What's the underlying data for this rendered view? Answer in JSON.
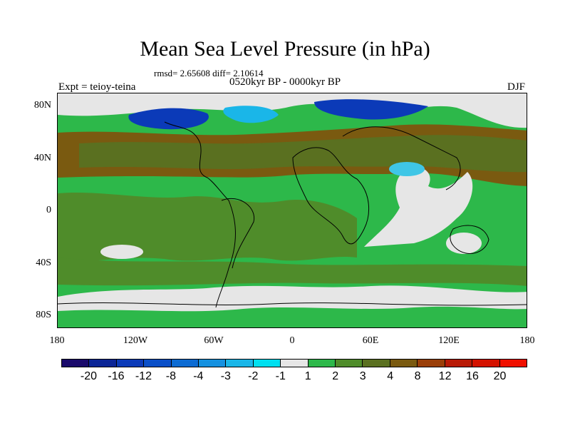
{
  "title": "Mean Sea Level Pressure (in hPa)",
  "stats": "rmsd= 2.65608 diff= 2.10614",
  "period": "0520kyr BP - 0000kyr BP",
  "experiment": "Expt = teioy-teina",
  "season": "DJF",
  "map": {
    "lat_labels": [
      "80N",
      "40N",
      "0",
      "40S",
      "80S"
    ],
    "lon_labels": [
      "180",
      "120W",
      "60W",
      "0",
      "60E",
      "120E",
      "180"
    ]
  },
  "colorbar": {
    "labels": [
      "-20",
      "-16",
      "-12",
      "-8",
      "-4",
      "-3",
      "-2",
      "-1",
      "1",
      "2",
      "3",
      "4",
      "8",
      "12",
      "16",
      "20"
    ],
    "colors": [
      "#1a0a6b",
      "#0b2596",
      "#0b3ab8",
      "#0a4fc8",
      "#0c6bd3",
      "#1591e0",
      "#1ab6e8",
      "#00e0f0",
      "#e6e6e6",
      "#2db84a",
      "#4f8c2a",
      "#5a7020",
      "#7a5a10",
      "#9a3e08",
      "#b81a06",
      "#d41200",
      "#f01000"
    ]
  },
  "colors": {
    "land_outline": "#000000",
    "background": "#ffffff"
  }
}
